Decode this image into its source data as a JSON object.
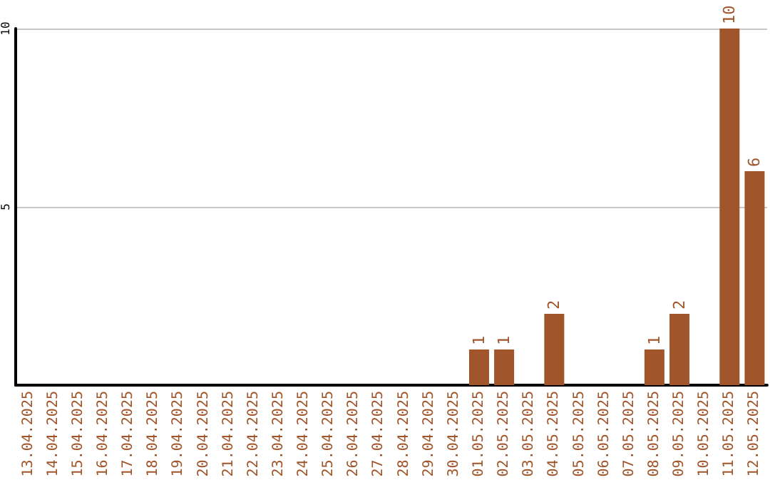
{
  "chart_data": {
    "type": "bar",
    "categories": [
      "13.04.2025",
      "14.04.2025",
      "15.04.2025",
      "16.04.2025",
      "17.04.2025",
      "18.04.2025",
      "19.04.2025",
      "20.04.2025",
      "21.04.2025",
      "22.04.2025",
      "23.04.2025",
      "24.04.2025",
      "25.04.2025",
      "26.04.2025",
      "27.04.2025",
      "28.04.2025",
      "29.04.2025",
      "30.04.2025",
      "01.05.2025",
      "02.05.2025",
      "03.05.2025",
      "04.05.2025",
      "05.05.2025",
      "06.05.2025",
      "07.05.2025",
      "08.05.2025",
      "09.05.2025",
      "10.05.2025",
      "11.05.2025",
      "12.05.2025"
    ],
    "values": [
      0,
      0,
      0,
      0,
      0,
      0,
      0,
      0,
      0,
      0,
      0,
      0,
      0,
      0,
      0,
      0,
      0,
      0,
      1,
      1,
      0,
      2,
      0,
      0,
      0,
      1,
      2,
      0,
      10,
      6
    ],
    "value_labels": [
      null,
      null,
      null,
      null,
      null,
      null,
      null,
      null,
      null,
      null,
      null,
      null,
      null,
      null,
      null,
      null,
      null,
      null,
      "1",
      "1",
      null,
      "2",
      null,
      null,
      null,
      "1",
      "2",
      null,
      "10",
      "6"
    ],
    "color": "#a0562a",
    "ylim": [
      0,
      10
    ],
    "yticks": [
      5,
      10
    ],
    "grid": "y"
  }
}
